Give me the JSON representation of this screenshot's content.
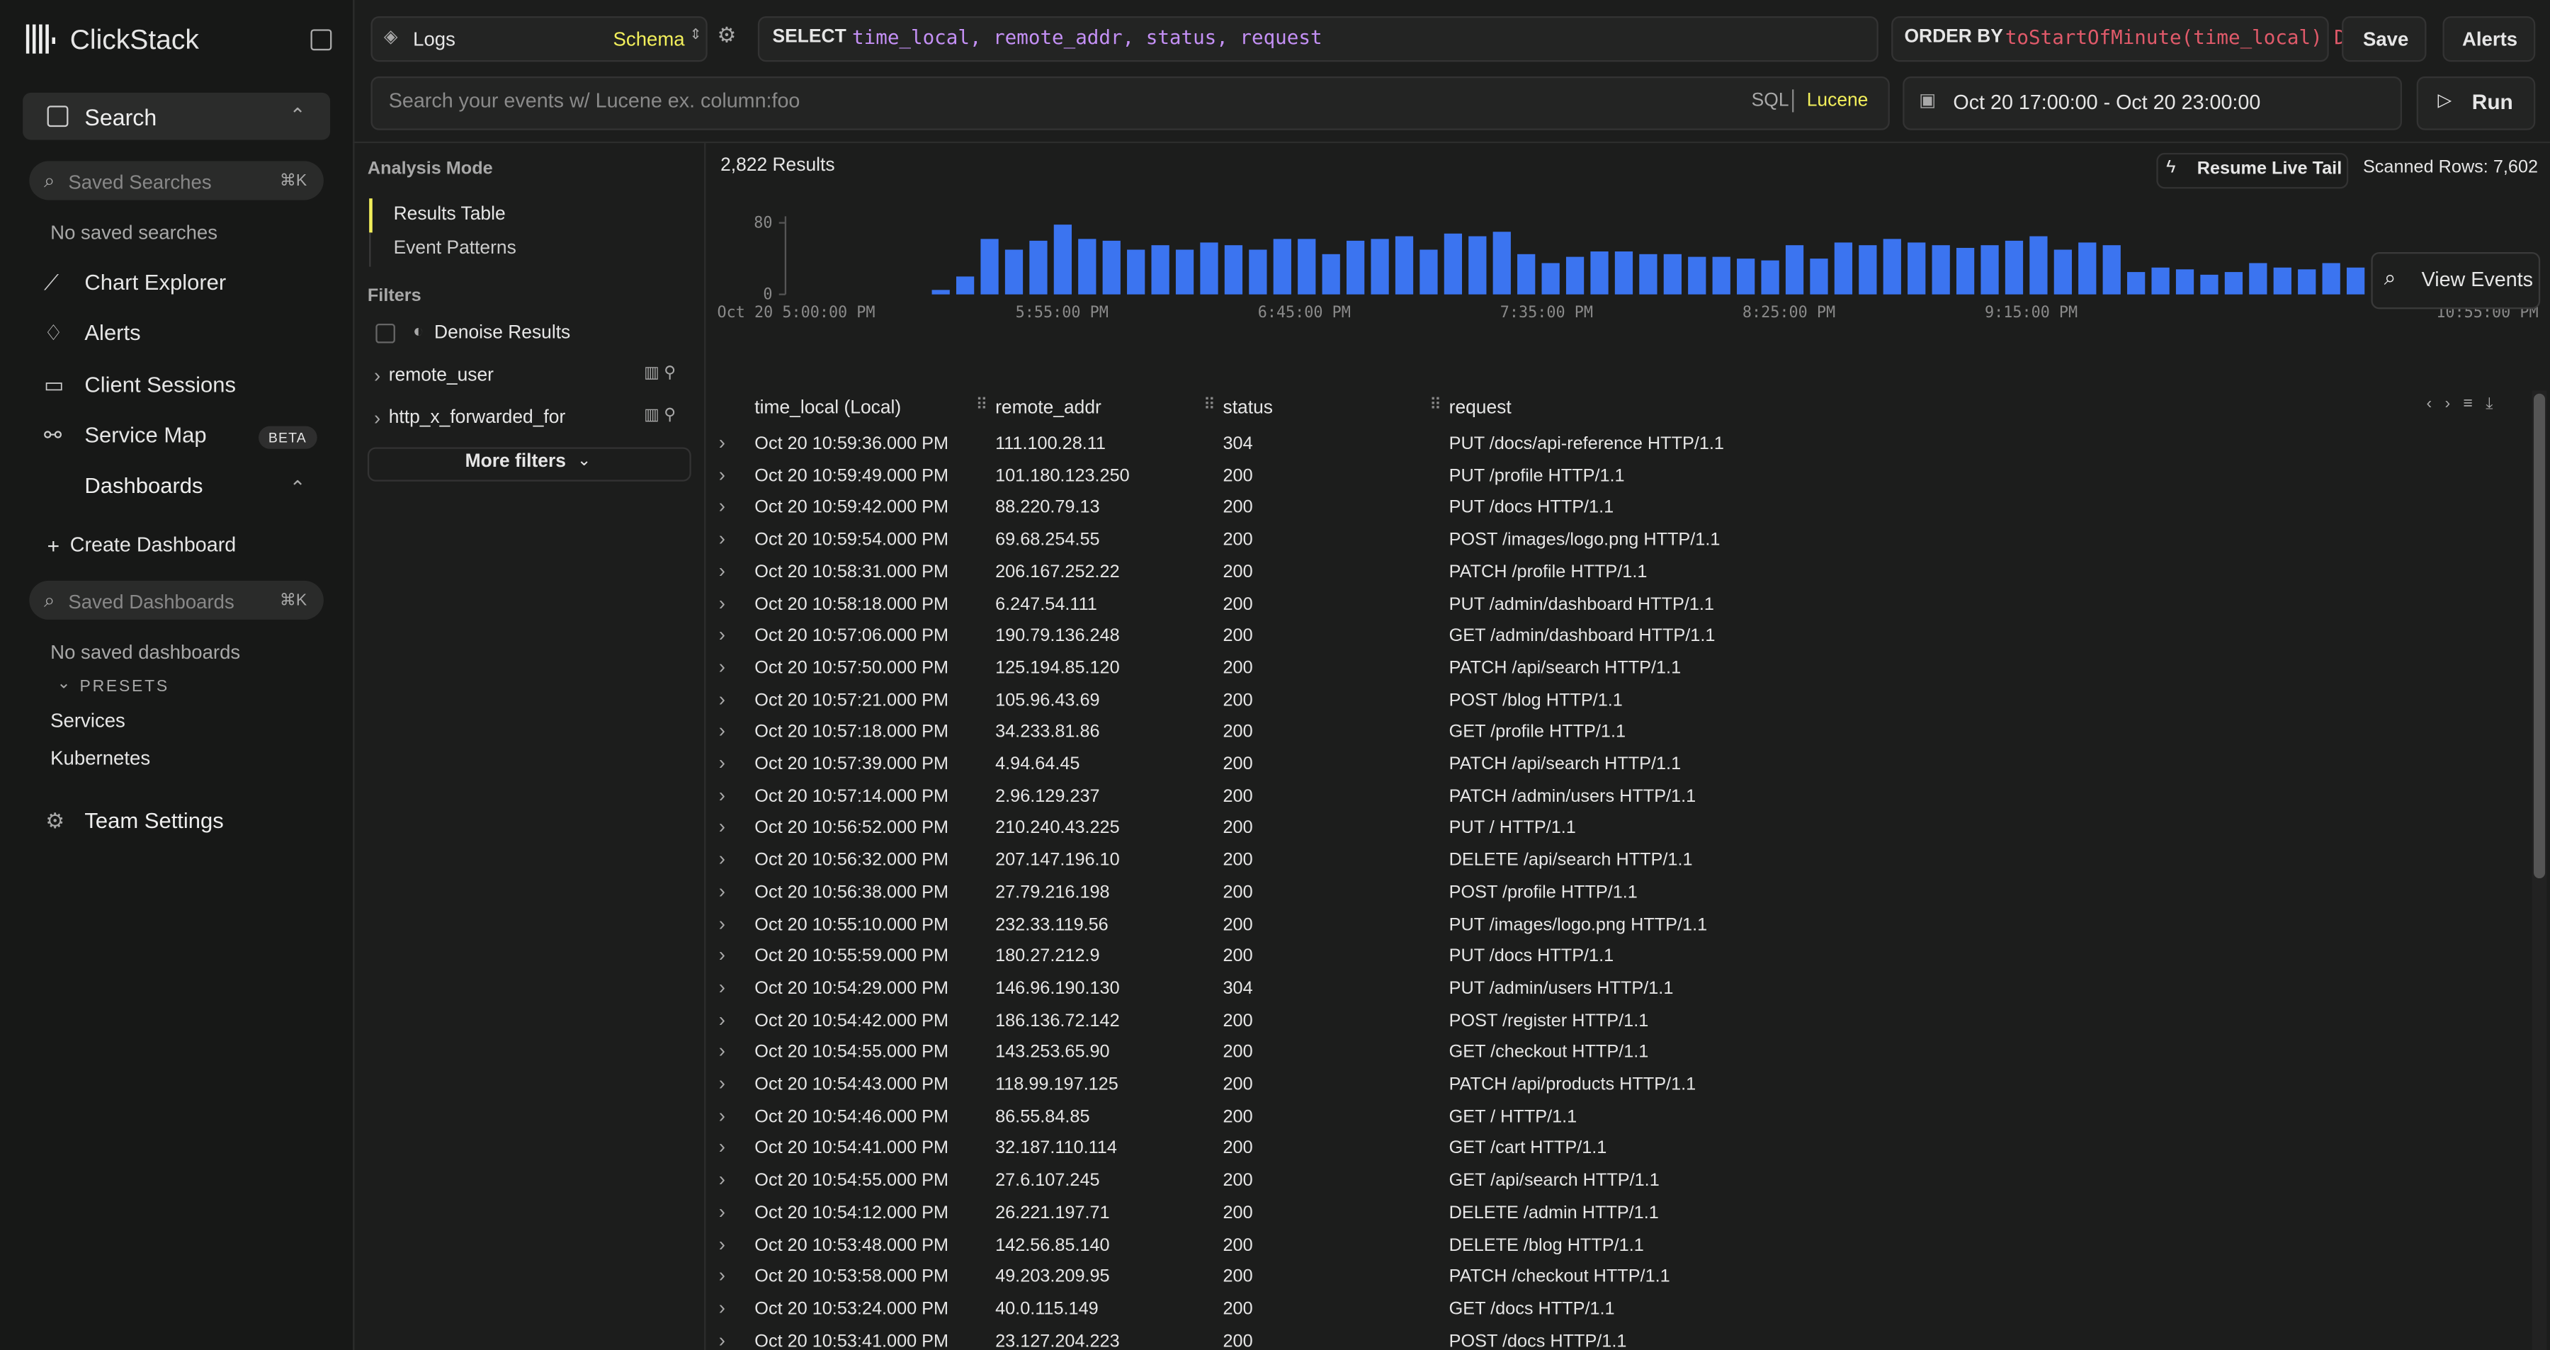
{
  "sidebar": {
    "logo": "ClickStack",
    "search": "Search",
    "saved_searches_placeholder": "Saved Searches",
    "saved_searches_shortcut": "⌘K",
    "no_saved_searches": "No saved searches",
    "nav": [
      "Chart Explorer",
      "Alerts",
      "Client Sessions",
      "Service Map"
    ],
    "beta": "BETA",
    "dashboards": "Dashboards",
    "create_dashboard": "Create Dashboard",
    "saved_dashboards_placeholder": "Saved Dashboards",
    "saved_dashboards_shortcut": "⌘K",
    "no_saved_dashboards": "No saved dashboards",
    "presets": "PRESETS",
    "preset_items": [
      "Services",
      "Kubernetes"
    ],
    "team_settings": "Team Settings"
  },
  "topbar": {
    "source": "Logs",
    "schema": "Schema",
    "select_keyword": "SELECT",
    "select_columns": "time_local, remote_addr, status, request",
    "order_keyword": "ORDER BY",
    "order_expr": "toStartOfMinute(time_local) D",
    "save": "Save",
    "alerts": "Alerts",
    "search_placeholder": "Search your events w/ Lucene ex. column:foo",
    "sql": "SQL",
    "lucene": "Lucene",
    "date_range": "Oct 20 17:00:00 - Oct 20 23:00:00",
    "run": "Run"
  },
  "filters_panel": {
    "analysis_mode": "Analysis Mode",
    "modes": [
      "Results Table",
      "Event Patterns"
    ],
    "filters": "Filters",
    "denoise": "Denoise Results",
    "fields": [
      "remote_user",
      "http_x_forwarded_for"
    ],
    "more_filters": "More filters"
  },
  "results": {
    "count": "2,822 Results",
    "resume_live_tail": "Resume Live Tail",
    "scanned_rows": "Scanned Rows: 7,602",
    "view_events": "View Events"
  },
  "histogram": {
    "type": "bar",
    "color": "#3b74f0",
    "ylim": [
      0,
      80
    ],
    "yticks": [
      0,
      80
    ],
    "xtick_labels": [
      "Oct 20 5:00:00 PM",
      "5:55:00 PM",
      "6:45:00 PM",
      "7:35:00 PM",
      "8:25:00 PM",
      "9:15:00 PM",
      "10:55:00 PM"
    ],
    "values": [
      5,
      20,
      62,
      50,
      60,
      78,
      62,
      60,
      50,
      55,
      50,
      58,
      55,
      50,
      62,
      62,
      45,
      60,
      62,
      65,
      50,
      68,
      65,
      70,
      45,
      35,
      42,
      48,
      48,
      45,
      45,
      42,
      42,
      40,
      38,
      55,
      40,
      58,
      55,
      62,
      58,
      55,
      52,
      55,
      60,
      65,
      50,
      58,
      55,
      25,
      30,
      28,
      22,
      25,
      35,
      30,
      28,
      35,
      30
    ]
  },
  "table": {
    "columns": [
      "time_local (Local)",
      "remote_addr",
      "status",
      "request"
    ],
    "rows": [
      [
        "Oct 20 10:59:36.000 PM",
        "111.100.28.11",
        "304",
        "PUT /docs/api-reference HTTP/1.1"
      ],
      [
        "Oct 20 10:59:49.000 PM",
        "101.180.123.250",
        "200",
        "PUT /profile HTTP/1.1"
      ],
      [
        "Oct 20 10:59:42.000 PM",
        "88.220.79.13",
        "200",
        "PUT /docs HTTP/1.1"
      ],
      [
        "Oct 20 10:59:54.000 PM",
        "69.68.254.55",
        "200",
        "POST /images/logo.png HTTP/1.1"
      ],
      [
        "Oct 20 10:58:31.000 PM",
        "206.167.252.22",
        "200",
        "PATCH /profile HTTP/1.1"
      ],
      [
        "Oct 20 10:58:18.000 PM",
        "6.247.54.111",
        "200",
        "PUT /admin/dashboard HTTP/1.1"
      ],
      [
        "Oct 20 10:57:06.000 PM",
        "190.79.136.248",
        "200",
        "GET /admin/dashboard HTTP/1.1"
      ],
      [
        "Oct 20 10:57:50.000 PM",
        "125.194.85.120",
        "200",
        "PATCH /api/search HTTP/1.1"
      ],
      [
        "Oct 20 10:57:21.000 PM",
        "105.96.43.69",
        "200",
        "POST /blog HTTP/1.1"
      ],
      [
        "Oct 20 10:57:18.000 PM",
        "34.233.81.86",
        "200",
        "GET /profile HTTP/1.1"
      ],
      [
        "Oct 20 10:57:39.000 PM",
        "4.94.64.45",
        "200",
        "PATCH /api/search HTTP/1.1"
      ],
      [
        "Oct 20 10:57:14.000 PM",
        "2.96.129.237",
        "200",
        "PATCH /admin/users HTTP/1.1"
      ],
      [
        "Oct 20 10:56:52.000 PM",
        "210.240.43.225",
        "200",
        "PUT / HTTP/1.1"
      ],
      [
        "Oct 20 10:56:32.000 PM",
        "207.147.196.10",
        "200",
        "DELETE /api/search HTTP/1.1"
      ],
      [
        "Oct 20 10:56:38.000 PM",
        "27.79.216.198",
        "200",
        "POST /profile HTTP/1.1"
      ],
      [
        "Oct 20 10:55:10.000 PM",
        "232.33.119.56",
        "200",
        "PUT /images/logo.png HTTP/1.1"
      ],
      [
        "Oct 20 10:55:59.000 PM",
        "180.27.212.9",
        "200",
        "PUT /docs HTTP/1.1"
      ],
      [
        "Oct 20 10:54:29.000 PM",
        "146.96.190.130",
        "304",
        "PUT /admin/users HTTP/1.1"
      ],
      [
        "Oct 20 10:54:42.000 PM",
        "186.136.72.142",
        "200",
        "POST /register HTTP/1.1"
      ],
      [
        "Oct 20 10:54:55.000 PM",
        "143.253.65.90",
        "200",
        "GET /checkout HTTP/1.1"
      ],
      [
        "Oct 20 10:54:43.000 PM",
        "118.99.197.125",
        "200",
        "PATCH /api/products HTTP/1.1"
      ],
      [
        "Oct 20 10:54:46.000 PM",
        "86.55.84.85",
        "200",
        "GET / HTTP/1.1"
      ],
      [
        "Oct 20 10:54:41.000 PM",
        "32.187.110.114",
        "200",
        "GET /cart HTTP/1.1"
      ],
      [
        "Oct 20 10:54:55.000 PM",
        "27.6.107.245",
        "200",
        "GET /api/search HTTP/1.1"
      ],
      [
        "Oct 20 10:54:12.000 PM",
        "26.221.197.71",
        "200",
        "DELETE /admin HTTP/1.1"
      ],
      [
        "Oct 20 10:53:48.000 PM",
        "142.56.85.140",
        "200",
        "DELETE /blog HTTP/1.1"
      ],
      [
        "Oct 20 10:53:58.000 PM",
        "49.203.209.95",
        "200",
        "PATCH /checkout HTTP/1.1"
      ],
      [
        "Oct 20 10:53:24.000 PM",
        "40.0.115.149",
        "200",
        "GET /docs HTTP/1.1"
      ],
      [
        "Oct 20 10:53:41.000 PM",
        "23.127.204.223",
        "200",
        "POST /docs HTTP/1.1"
      ]
    ]
  }
}
